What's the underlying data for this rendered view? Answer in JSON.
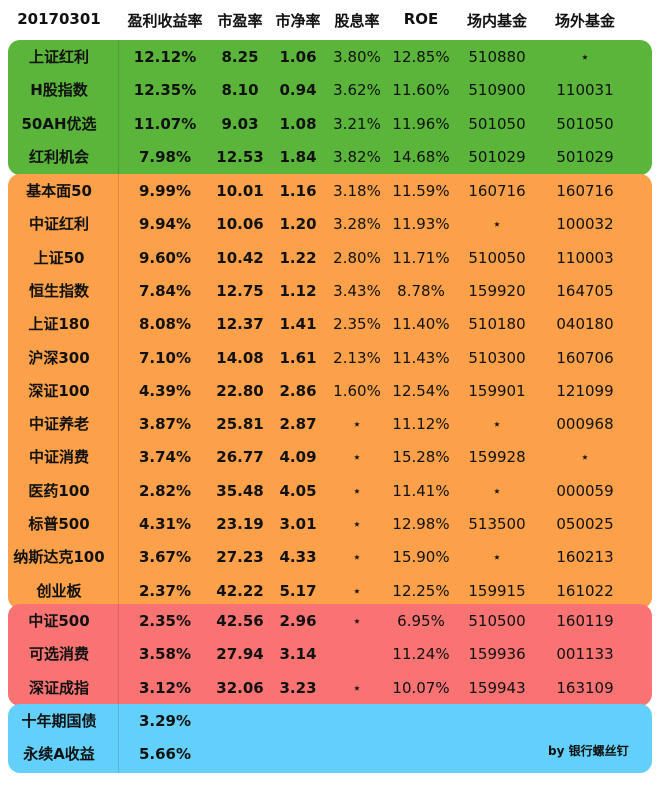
{
  "header": {
    "date": "20170301",
    "columns": [
      "盈利收益率",
      "市盈率",
      "市净率",
      "股息率",
      "ROE",
      "场内基金",
      "场外基金"
    ]
  },
  "groups": [
    {
      "color": "#5ab53a",
      "rows": [
        {
          "name": "上证红利",
          "earnings_yield": "12.12%",
          "pe": "8.25",
          "pb": "1.06",
          "dividend": "3.80%",
          "roe": "12.85%",
          "onsite": "510880",
          "offsite": "⋆"
        },
        {
          "name": "H股指数",
          "earnings_yield": "12.35%",
          "pe": "8.10",
          "pb": "0.94",
          "dividend": "3.62%",
          "roe": "11.60%",
          "onsite": "510900",
          "offsite": "110031"
        },
        {
          "name": "50AH优选",
          "earnings_yield": "11.07%",
          "pe": "9.03",
          "pb": "1.08",
          "dividend": "3.21%",
          "roe": "11.96%",
          "onsite": "501050",
          "offsite": "501050"
        },
        {
          "name": "红利机会",
          "earnings_yield": "7.98%",
          "pe": "12.53",
          "pb": "1.84",
          "dividend": "3.82%",
          "roe": "14.68%",
          "onsite": "501029",
          "offsite": "501029"
        }
      ]
    },
    {
      "color": "#fca04a",
      "rows": [
        {
          "name": "基本面50",
          "earnings_yield": "9.99%",
          "pe": "10.01",
          "pb": "1.16",
          "dividend": "3.18%",
          "roe": "11.59%",
          "onsite": "160716",
          "offsite": "160716"
        },
        {
          "name": "中证红利",
          "earnings_yield": "9.94%",
          "pe": "10.06",
          "pb": "1.20",
          "dividend": "3.28%",
          "roe": "11.93%",
          "onsite": "⋆",
          "offsite": "100032"
        },
        {
          "name": "上证50",
          "earnings_yield": "9.60%",
          "pe": "10.42",
          "pb": "1.22",
          "dividend": "2.80%",
          "roe": "11.71%",
          "onsite": "510050",
          "offsite": "110003"
        },
        {
          "name": "恒生指数",
          "earnings_yield": "7.84%",
          "pe": "12.75",
          "pb": "1.12",
          "dividend": "3.43%",
          "roe": "8.78%",
          "onsite": "159920",
          "offsite": "164705"
        },
        {
          "name": "上证180",
          "earnings_yield": "8.08%",
          "pe": "12.37",
          "pb": "1.41",
          "dividend": "2.35%",
          "roe": "11.40%",
          "onsite": "510180",
          "offsite": "040180"
        },
        {
          "name": "沪深300",
          "earnings_yield": "7.10%",
          "pe": "14.08",
          "pb": "1.61",
          "dividend": "2.13%",
          "roe": "11.43%",
          "onsite": "510300",
          "offsite": "160706"
        },
        {
          "name": "深证100",
          "earnings_yield": "4.39%",
          "pe": "22.80",
          "pb": "2.86",
          "dividend": "1.60%",
          "roe": "12.54%",
          "onsite": "159901",
          "offsite": "121099"
        },
        {
          "name": "中证养老",
          "earnings_yield": "3.87%",
          "pe": "25.81",
          "pb": "2.87",
          "dividend": "⋆",
          "roe": "11.12%",
          "onsite": "⋆",
          "offsite": "000968"
        },
        {
          "name": "中证消费",
          "earnings_yield": "3.74%",
          "pe": "26.77",
          "pb": "4.09",
          "dividend": "⋆",
          "roe": "15.28%",
          "onsite": "159928",
          "offsite": "⋆"
        },
        {
          "name": "医药100",
          "earnings_yield": "2.82%",
          "pe": "35.48",
          "pb": "4.05",
          "dividend": "⋆",
          "roe": "11.41%",
          "onsite": "⋆",
          "offsite": "000059"
        },
        {
          "name": "标普500",
          "earnings_yield": "4.31%",
          "pe": "23.19",
          "pb": "3.01",
          "dividend": "⋆",
          "roe": "12.98%",
          "onsite": "513500",
          "offsite": "050025"
        },
        {
          "name": "纳斯达克100",
          "earnings_yield": "3.67%",
          "pe": "27.23",
          "pb": "4.33",
          "dividend": "⋆",
          "roe": "15.90%",
          "onsite": "⋆",
          "offsite": "160213"
        },
        {
          "name": "创业板",
          "earnings_yield": "2.37%",
          "pe": "42.22",
          "pb": "5.17",
          "dividend": "⋆",
          "roe": "12.25%",
          "onsite": "159915",
          "offsite": "161022"
        }
      ]
    },
    {
      "color": "#fa7373",
      "rows": [
        {
          "name": "中证500",
          "earnings_yield": "2.35%",
          "pe": "42.56",
          "pb": "2.96",
          "dividend": "⋆",
          "roe": "6.95%",
          "onsite": "510500",
          "offsite": "160119"
        },
        {
          "name": "可选消费",
          "earnings_yield": "3.58%",
          "pe": "27.94",
          "pb": "3.14",
          "dividend": "",
          "roe": "11.24%",
          "onsite": "159936",
          "offsite": "001133"
        },
        {
          "name": "深证成指",
          "earnings_yield": "3.12%",
          "pe": "32.06",
          "pb": "3.23",
          "dividend": "⋆",
          "roe": "10.07%",
          "onsite": "159943",
          "offsite": "163109"
        }
      ]
    },
    {
      "color": "#62d0fb",
      "rows": [
        {
          "name": "十年期国债",
          "earnings_yield": "3.29%",
          "pe": "",
          "pb": "",
          "dividend": "",
          "roe": "",
          "onsite": "",
          "offsite": ""
        },
        {
          "name": "永续A收益",
          "earnings_yield": "5.66%",
          "pe": "",
          "pb": "",
          "dividend": "",
          "roe": "",
          "onsite": "",
          "offsite": ""
        }
      ]
    }
  ],
  "signature": "by 银行螺丝钉"
}
